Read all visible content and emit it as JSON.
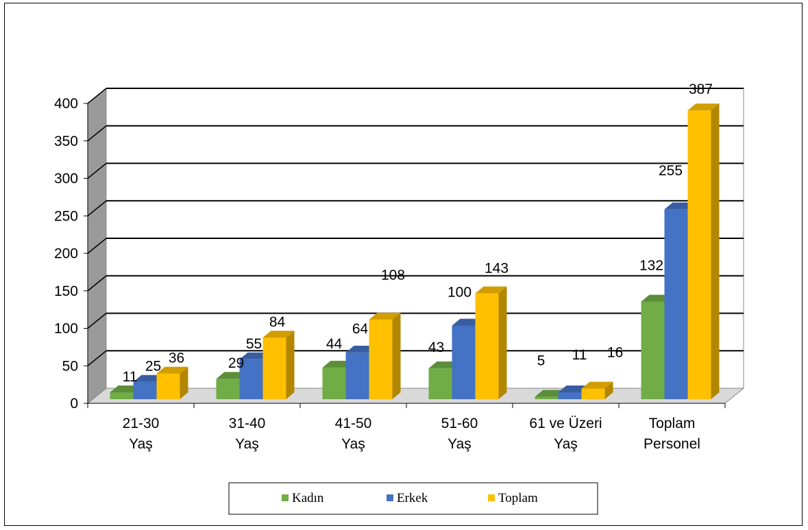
{
  "chart_data": {
    "type": "bar",
    "title": "",
    "xlabel": "",
    "ylabel": "",
    "ylim": [
      0,
      400
    ],
    "yticks": [
      0,
      50,
      100,
      150,
      200,
      250,
      300,
      350,
      400
    ],
    "categories": [
      [
        "21-30",
        "Yaş"
      ],
      [
        "31-40",
        "Yaş"
      ],
      [
        "41-50",
        "Yaş"
      ],
      [
        "51-60",
        "Yaş"
      ],
      [
        "61 ve Üzeri",
        "Yaş"
      ],
      [
        "Toplam",
        "Personel"
      ]
    ],
    "series": [
      {
        "name": "Kadın",
        "color": "#70AD47",
        "values": [
          11,
          29,
          44,
          43,
          5,
          132
        ]
      },
      {
        "name": "Erkek",
        "color": "#4472C4",
        "values": [
          25,
          55,
          64,
          100,
          11,
          255
        ]
      },
      {
        "name": "Toplam",
        "color": "#FFC000",
        "values": [
          36,
          84,
          108,
          143,
          16,
          387
        ]
      }
    ],
    "grid": true,
    "legend_position": "bottom",
    "data_labels": true
  }
}
